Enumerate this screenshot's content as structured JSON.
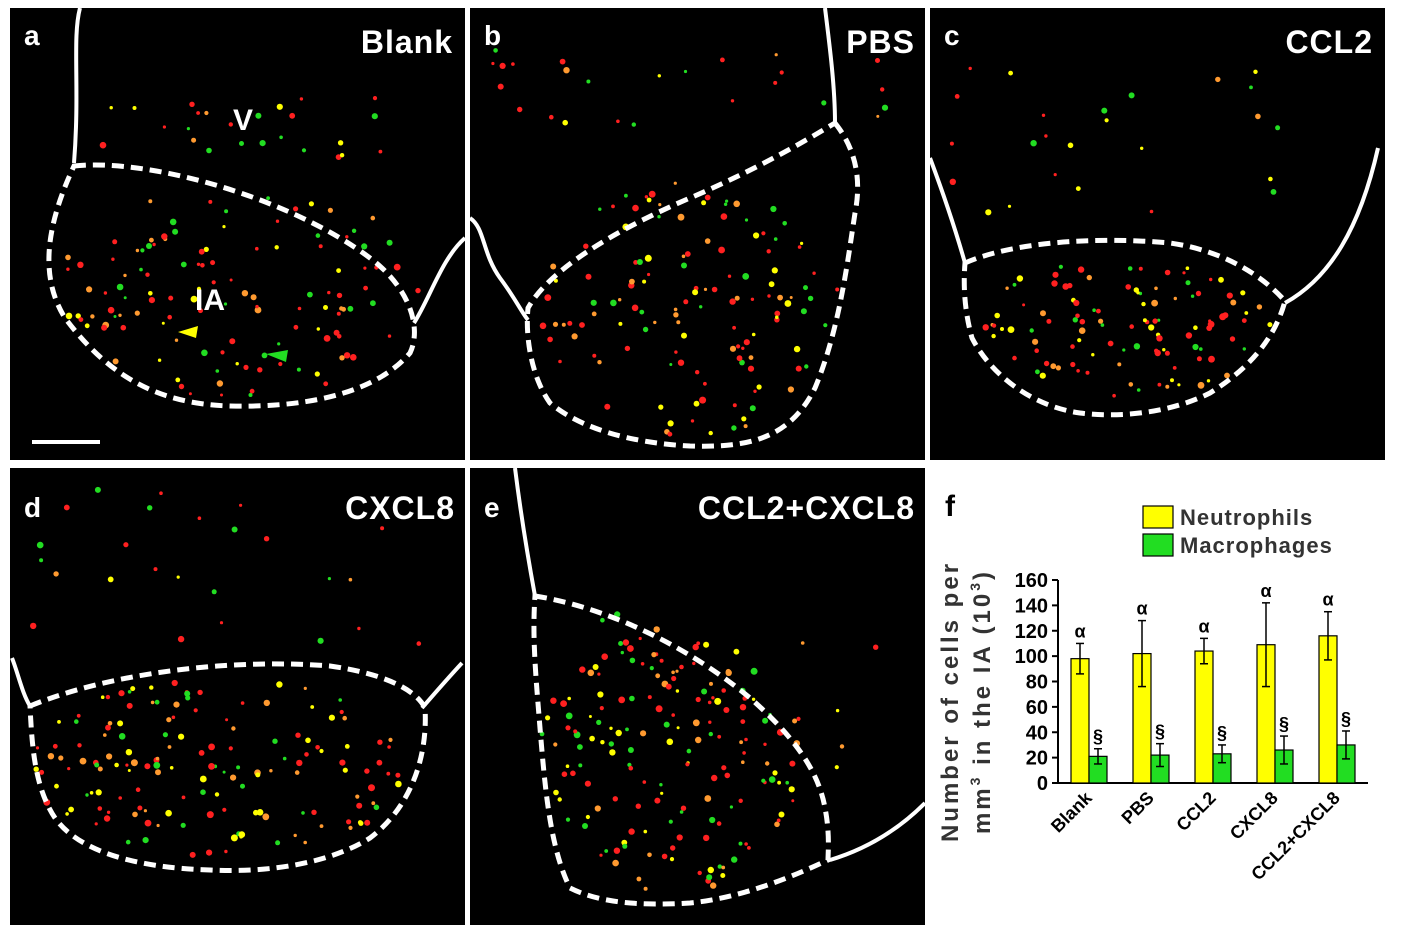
{
  "panels": [
    {
      "letter": "a",
      "name": "Blank",
      "region_v": "V",
      "region_ia": "IA"
    },
    {
      "letter": "b",
      "name": "PBS"
    },
    {
      "letter": "c",
      "name": "CCL2"
    },
    {
      "letter": "d",
      "name": "CXCL8"
    },
    {
      "letter": "e",
      "name": "CCL2+CXCL8"
    },
    {
      "letter": "f"
    }
  ],
  "colors": {
    "neutrophils": "#ffff00",
    "macrophages": "#22dd22",
    "red_cells": "#ff2020",
    "outline": "#ffffff",
    "background": "#000000"
  },
  "chart_data": {
    "type": "bar",
    "categories": [
      "Blank",
      "PBS",
      "CCL2",
      "CXCL8",
      "CCL2+CXCL8"
    ],
    "series": [
      {
        "name": "Neutrophils",
        "values": [
          98,
          102,
          104,
          109,
          116
        ],
        "errors": [
          12,
          26,
          10,
          33,
          19
        ],
        "annotation": [
          "α",
          "α",
          "α",
          "α",
          "α"
        ]
      },
      {
        "name": "Macrophages",
        "values": [
          21,
          22,
          23,
          26,
          30
        ],
        "errors": [
          6,
          9,
          7,
          11,
          11
        ],
        "annotation": [
          "§",
          "§",
          "§",
          "§",
          "§"
        ]
      }
    ],
    "ylabel_line1": "Number of cells per",
    "ylabel_line2_parts": [
      "mm",
      "3",
      " in the IA (10",
      "3",
      ")"
    ],
    "ylim": [
      0,
      160
    ],
    "yticks": [
      0,
      20,
      40,
      60,
      80,
      100,
      120,
      140,
      160
    ],
    "legend_position": "top-right"
  }
}
